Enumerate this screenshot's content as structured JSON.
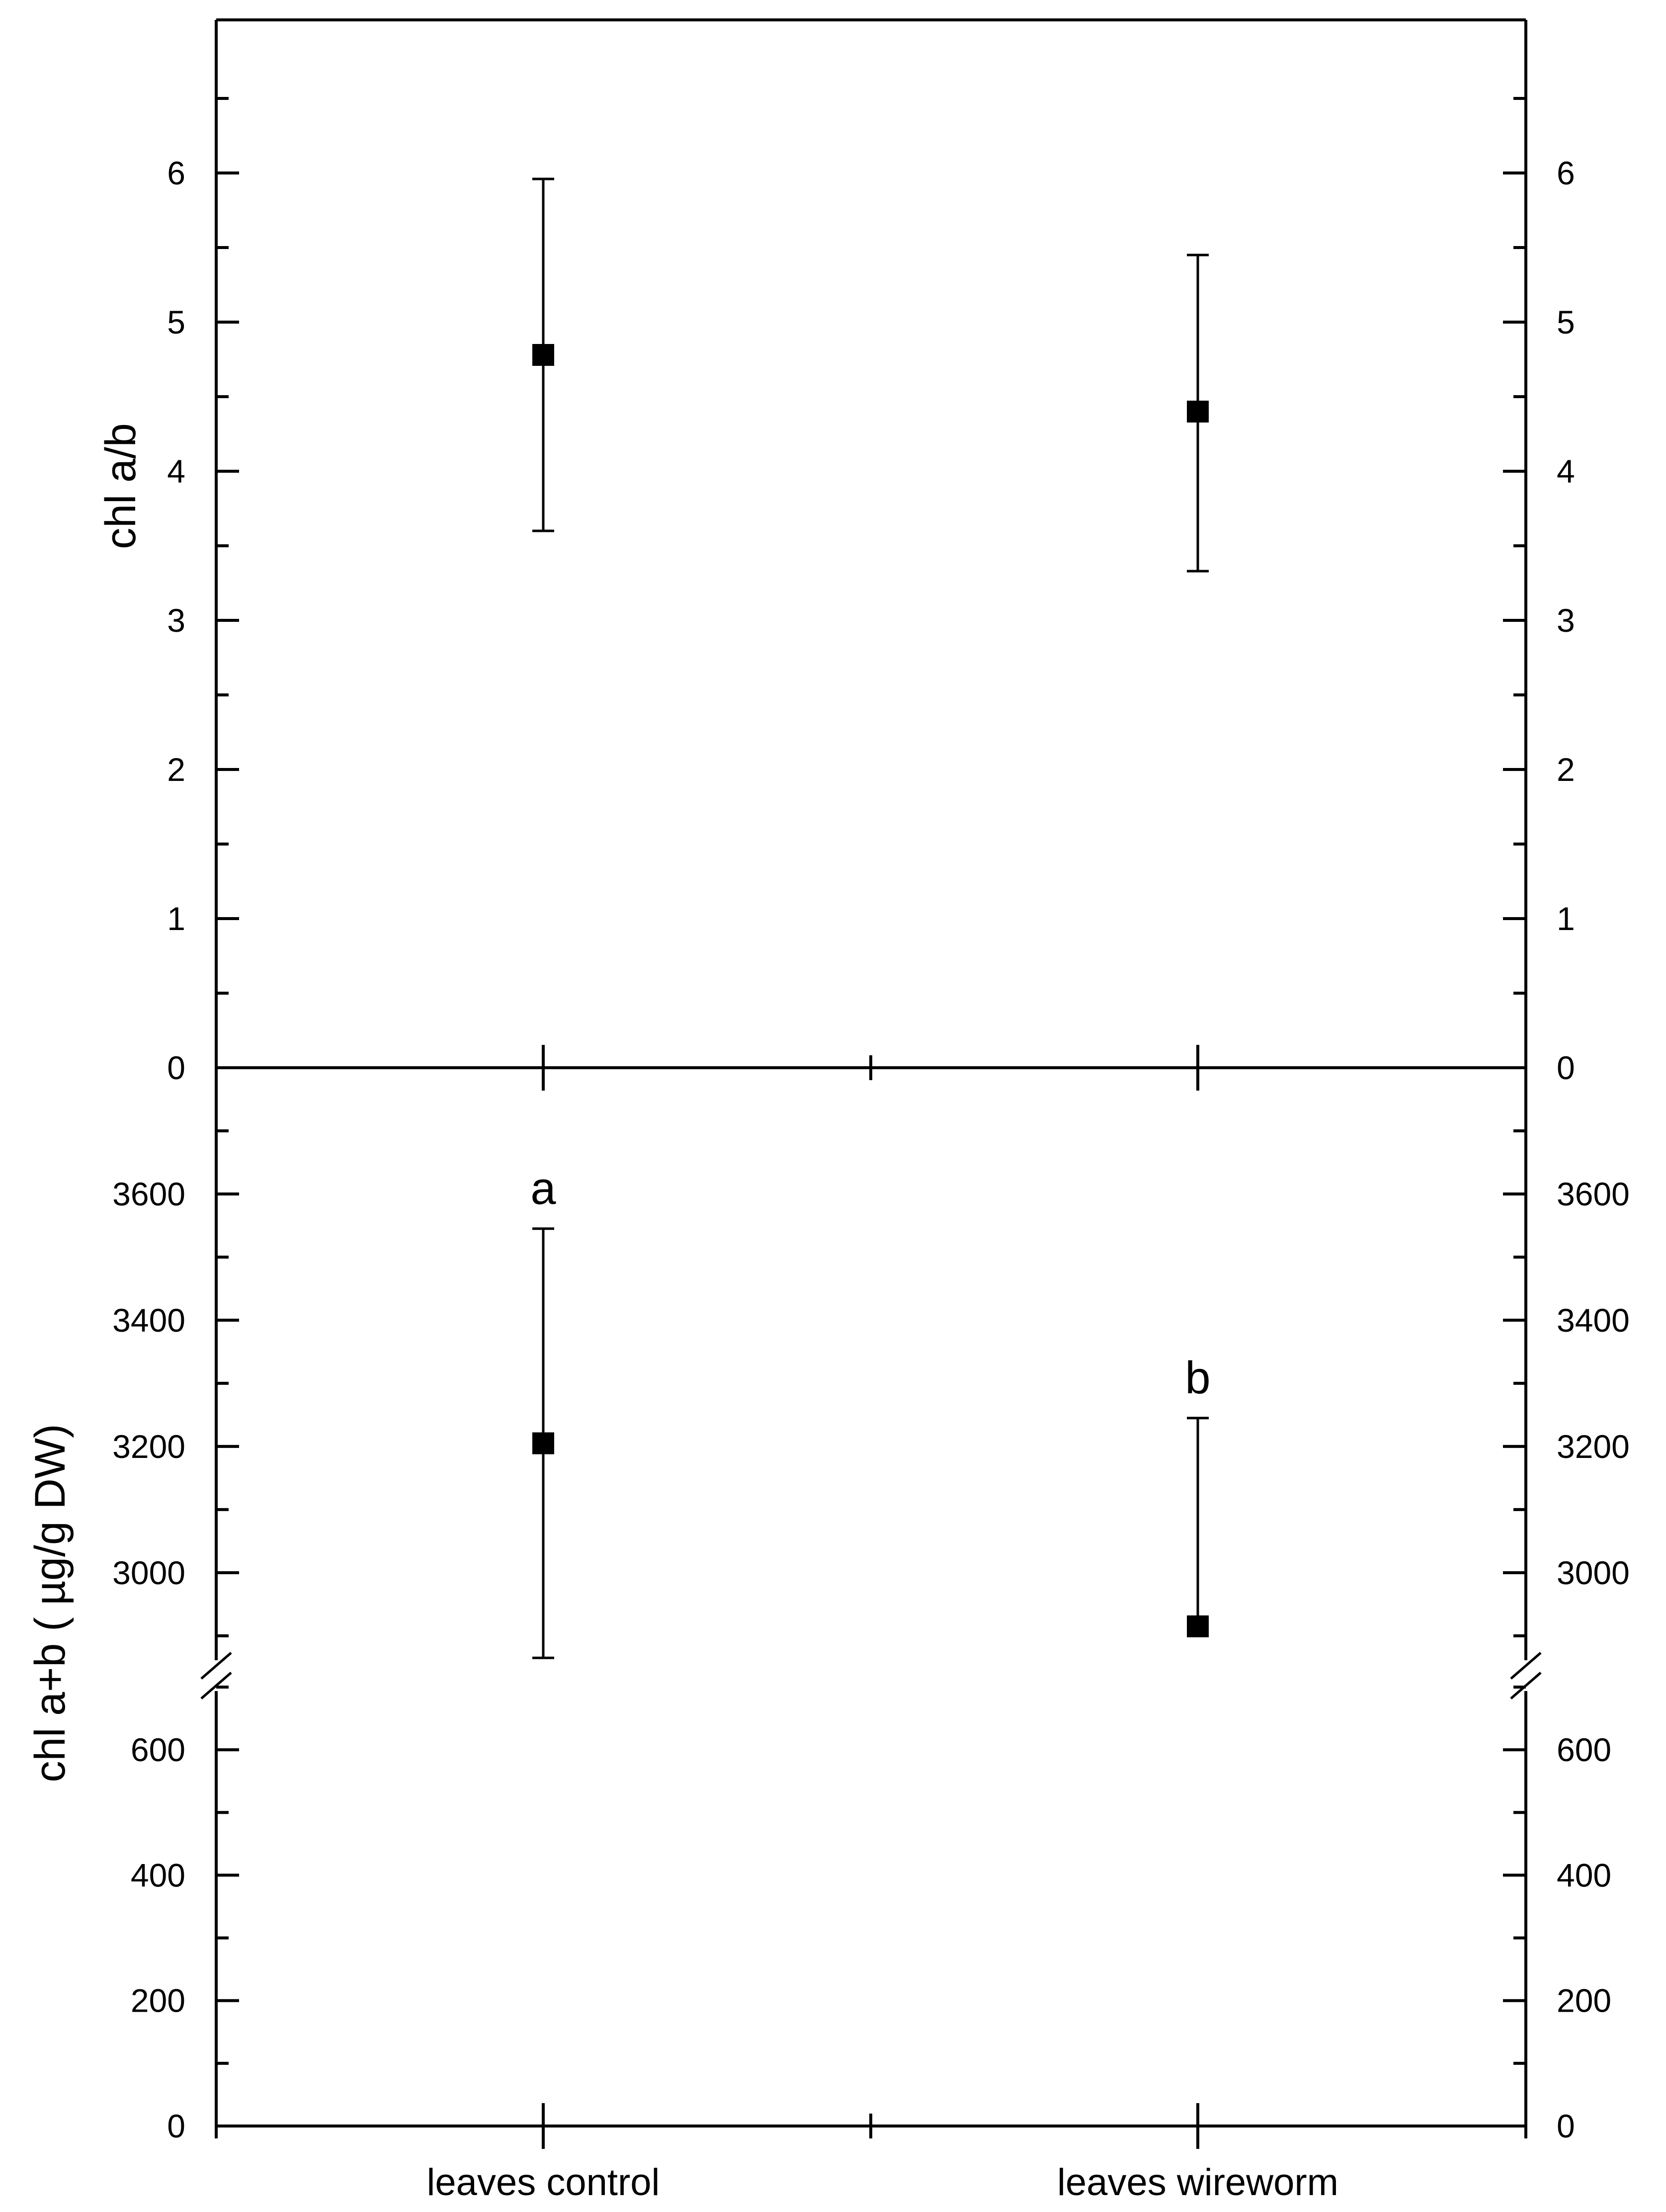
{
  "chart_data": {
    "type": "scatter",
    "layout": "two stacked panels sharing x axis",
    "categories": [
      "leaves control",
      "leaves wireworm"
    ],
    "panels": [
      {
        "name": "top",
        "ylabel": "chl a/b",
        "ylim": [
          0,
          6.5
        ],
        "ticks": [
          0,
          1,
          2,
          3,
          4,
          5,
          6
        ],
        "tick_labels": [
          "0",
          "1",
          "2",
          "3",
          "4",
          "5",
          "6"
        ],
        "minor_step": 0.5,
        "right_axis_mirror": true,
        "points": [
          {
            "category": "leaves control",
            "y": 4.78,
            "err_low": 3.6,
            "err_high": 5.96,
            "annotation": ""
          },
          {
            "category": "leaves wireworm",
            "y": 4.4,
            "err_low": 3.33,
            "err_high": 5.45,
            "annotation": ""
          }
        ]
      },
      {
        "name": "bottom",
        "ylabel": "chl a+b ( µg/g DW)",
        "broken_axis": true,
        "segments": [
          {
            "range": [
              0,
              700
            ],
            "ticks": [
              0,
              200,
              400,
              600
            ],
            "tick_labels": [
              "0",
              "200",
              "400",
              "600"
            ],
            "minor_step": 100
          },
          {
            "range": [
              2855,
              3800
            ],
            "ticks": [
              3000,
              3200,
              3400,
              3600
            ],
            "tick_labels": [
              "3000",
              "3200",
              "3400",
              "3600"
            ],
            "minor_step": 100
          }
        ],
        "right_axis_mirror": true,
        "points": [
          {
            "category": "leaves control",
            "y": 3205,
            "err_low": 2865,
            "err_high": 3545,
            "annotation": "a"
          },
          {
            "category": "leaves wireworm",
            "y": 2915,
            "err_low": 2915,
            "err_high": 3245,
            "annotation": "b"
          }
        ]
      }
    ],
    "legend": "none",
    "grid": false,
    "marker": "filled-square",
    "marker_color": "#000000"
  }
}
